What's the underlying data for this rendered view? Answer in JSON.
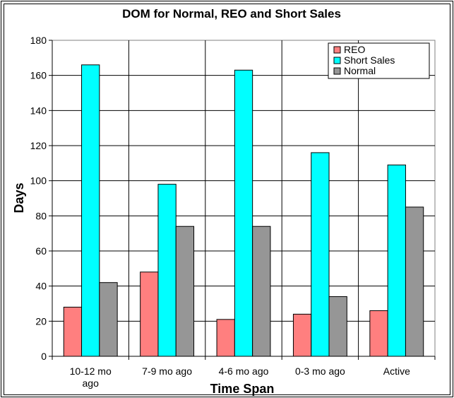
{
  "chart_data": {
    "type": "bar",
    "title": "DOM for Normal, REO and Short Sales",
    "xlabel": "Time Span",
    "ylabel": "Days",
    "ylim": [
      0,
      180
    ],
    "ytick_step": 20,
    "grid": true,
    "legend_position": "top-right",
    "categories": [
      [
        "10-12 mo",
        "ago"
      ],
      [
        "7-9 mo ago"
      ],
      [
        "4-6 mo ago"
      ],
      [
        "0-3 mo ago"
      ],
      [
        "Active"
      ]
    ],
    "series": [
      {
        "name": "REO",
        "color": "#ff7f7f",
        "values": [
          28,
          48,
          21,
          24,
          26
        ]
      },
      {
        "name": "Short Sales",
        "color": "#00ffff",
        "values": [
          166,
          98,
          163,
          116,
          109
        ]
      },
      {
        "name": "Normal",
        "color": "#969696",
        "values": [
          42,
          74,
          74,
          34,
          85
        ]
      }
    ]
  }
}
